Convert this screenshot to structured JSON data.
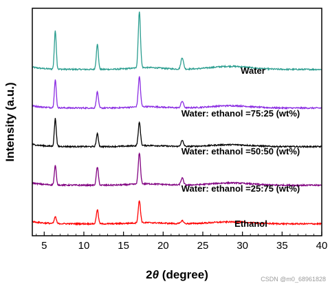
{
  "chart_data": {
    "type": "line",
    "xlabel": "2θ (degree)",
    "ylabel": "Intensity (a.u.)",
    "xlim": [
      3.5,
      40
    ],
    "xticks": [
      5,
      10,
      15,
      20,
      25,
      30,
      35,
      40
    ],
    "yticks_shown": false,
    "grid": false,
    "legend": "none",
    "peaks_2theta": [
      6.4,
      11.7,
      17.0,
      22.4
    ],
    "series": [
      {
        "name": "Water",
        "color": "#2a9d8f",
        "offset": 4,
        "baseline": 0.13,
        "peak_heights": [
          1.0,
          0.65,
          1.45,
          0.3
        ],
        "hump_height": 0.08
      },
      {
        "name": "Water: ethanol =75:25 (wt%)",
        "color": "#8a2be2",
        "offset": 3,
        "baseline": 0.13,
        "peak_heights": [
          0.72,
          0.42,
          0.78,
          0.17
        ],
        "hump_height": 0.06
      },
      {
        "name": "Water: ethanol =50:50 (wt%)",
        "color": "#000000",
        "offset": 2,
        "baseline": 0.13,
        "peak_heights": [
          0.72,
          0.33,
          0.6,
          0.15
        ],
        "hump_height": 0.05
      },
      {
        "name": "Water: ethanol =25:75 (wt%)",
        "color": "#800080",
        "offset": 1,
        "baseline": 0.13,
        "peak_heights": [
          0.5,
          0.47,
          0.8,
          0.18
        ],
        "hump_height": 0.06
      },
      {
        "name": "Ethanol",
        "color": "#ff0000",
        "offset": 0,
        "baseline": 0.13,
        "peak_heights": [
          0.18,
          0.37,
          0.57,
          0.08
        ],
        "hump_height": 0.05
      }
    ]
  },
  "watermark": "CSDN @m0_68961828"
}
